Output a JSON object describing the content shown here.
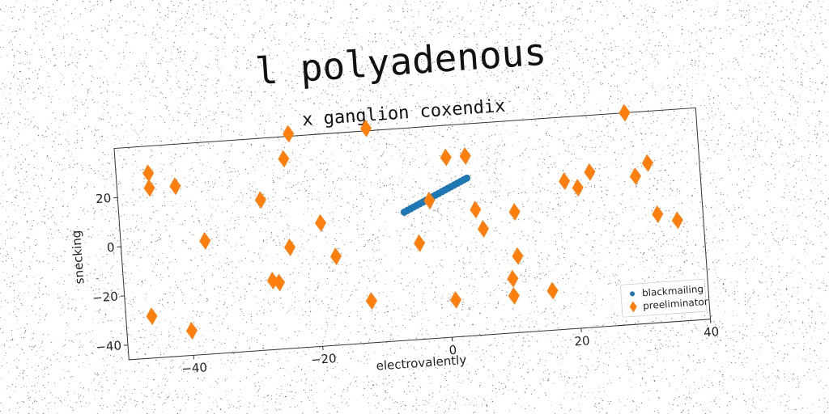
{
  "chart_data": {
    "type": "scatter",
    "title": "l polyadenous",
    "subtitle": "x ganglion coxendix",
    "xlabel": "electrovalently",
    "ylabel": "snecking",
    "xlim": [
      -50,
      40
    ],
    "ylim": [
      -46,
      40
    ],
    "xticks": [
      -40,
      -20,
      0,
      20,
      40
    ],
    "yticks": [
      -40,
      -20,
      0,
      20
    ],
    "grid": false,
    "legend_position": "lower-right",
    "series": [
      {
        "name": "blackmailing",
        "marker": "circle",
        "color": "#1f77b4",
        "points": [
          [
            -6.0,
            6.0
          ],
          [
            -5.5,
            6.6
          ],
          [
            -5.0,
            7.2
          ],
          [
            -4.5,
            7.8
          ],
          [
            -4.0,
            8.4
          ],
          [
            -3.5,
            9.0
          ],
          [
            -3.0,
            9.6
          ],
          [
            -2.5,
            10.2
          ],
          [
            -2.0,
            10.8
          ],
          [
            -1.5,
            11.4
          ],
          [
            -1.0,
            12.0
          ],
          [
            -0.5,
            12.6
          ],
          [
            0.0,
            13.2
          ],
          [
            0.5,
            13.8
          ],
          [
            1.0,
            14.4
          ],
          [
            1.5,
            15.0
          ],
          [
            2.0,
            15.6
          ],
          [
            2.5,
            16.2
          ],
          [
            3.0,
            16.8
          ],
          [
            3.5,
            17.4
          ],
          [
            4.0,
            18.0
          ]
        ]
      },
      {
        "name": "preeliminator",
        "marker": "diamond",
        "color": "#ff7f0e",
        "points": [
          [
            -45,
            29
          ],
          [
            -45,
            23
          ],
          [
            -41,
            23
          ],
          [
            -37,
            0
          ],
          [
            -28,
            15
          ],
          [
            -24,
            31
          ],
          [
            -23,
            41
          ],
          [
            -11,
            41
          ],
          [
            -19,
            4
          ],
          [
            -24,
            -5
          ],
          [
            -27,
            -18
          ],
          [
            -26,
            -19
          ],
          [
            -17,
            -10
          ],
          [
            -12,
            -29
          ],
          [
            -46,
            -29
          ],
          [
            -40,
            -36
          ],
          [
            -4,
            -7
          ],
          [
            -2,
            10
          ],
          [
            1,
            27
          ],
          [
            4,
            27
          ],
          [
            5,
            5
          ],
          [
            6,
            -3
          ],
          [
            11,
            3
          ],
          [
            11,
            -15
          ],
          [
            10,
            -24
          ],
          [
            10,
            -31
          ],
          [
            1,
            -31
          ],
          [
            16,
            -30
          ],
          [
            19,
            14
          ],
          [
            21,
            11
          ],
          [
            23,
            17
          ],
          [
            29,
            40
          ],
          [
            30,
            14
          ],
          [
            32,
            19
          ],
          [
            33,
            -2
          ],
          [
            36,
            -5
          ]
        ]
      }
    ]
  }
}
